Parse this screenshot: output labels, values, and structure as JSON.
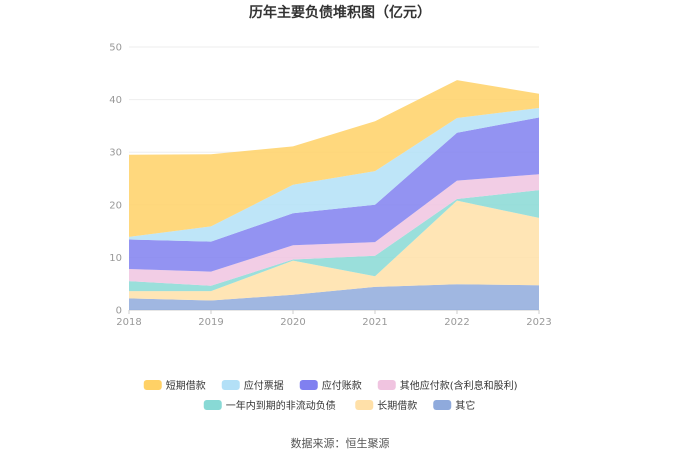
{
  "chart_data": {
    "type": "area",
    "stacked": true,
    "title": "历年主要负债堆积图（亿元）",
    "x": [
      "2018",
      "2019",
      "2020",
      "2021",
      "2022",
      "2023"
    ],
    "ylim": [
      0,
      50
    ],
    "yticks": [
      "0",
      "10",
      "20",
      "30",
      "40",
      "50"
    ],
    "grid": true,
    "legend_position": "bottom",
    "source": "数据来源：恒生聚源",
    "series": [
      {
        "name": "其它",
        "color": "#8faadc",
        "values": [
          2.2,
          1.8,
          2.9,
          4.4,
          4.9,
          4.7
        ]
      },
      {
        "name": "长期借款",
        "color": "#ffe0a8",
        "values": [
          1.4,
          1.8,
          6.5,
          2.0,
          15.9,
          12.8
        ]
      },
      {
        "name": "一年内到期的非流动负债",
        "color": "#88d9d5",
        "values": [
          1.9,
          1.0,
          0.2,
          3.9,
          0.3,
          5.3
        ]
      },
      {
        "name": "其他应付款(含利息和股利)",
        "color": "#f0c4e0",
        "values": [
          2.3,
          2.7,
          2.7,
          2.6,
          3.5,
          3.0
        ]
      },
      {
        "name": "应付账款",
        "color": "#8080f0",
        "values": [
          5.6,
          5.7,
          6.1,
          7.1,
          9.1,
          10.8
        ]
      },
      {
        "name": "应付票据",
        "color": "#b3e0f7",
        "values": [
          0.5,
          2.9,
          5.4,
          6.4,
          2.8,
          1.8
        ]
      },
      {
        "name": "短期借款",
        "color": "#ffd166",
        "values": [
          15.6,
          13.7,
          7.3,
          9.5,
          7.2,
          2.7
        ]
      }
    ],
    "legend_order": [
      "短期借款",
      "应付票据",
      "应付账款",
      "其他应付款(含利息和股利)",
      "一年内到期的非流动负债",
      "长期借款",
      "其它"
    ]
  }
}
